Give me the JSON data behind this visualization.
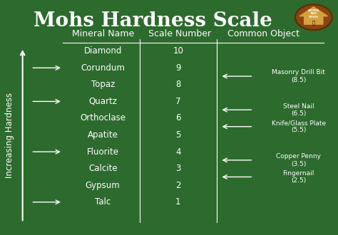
{
  "title": "Mohs Hardness Scale",
  "bg_color": "#2d6a2d",
  "text_color": "#ffffff",
  "col_headers": [
    "Mineral Name",
    "Scale Number",
    "Common Object"
  ],
  "minerals": [
    "Diamond",
    "Corundum",
    "Topaz",
    "Quartz",
    "Orthoclase",
    "Apatite",
    "Fluorite",
    "Calcite",
    "Gypsum",
    "Talc"
  ],
  "scale_numbers": [
    10,
    9,
    8,
    7,
    6,
    5,
    4,
    3,
    2,
    1
  ],
  "common_objects": [
    {
      "name": "Masonry Drill Bit\n(8.5)",
      "scale": 8.5
    },
    {
      "name": "Steel Nail\n(6.5)",
      "scale": 6.5
    },
    {
      "name": "Knife/Glass Plate\n(5.5)",
      "scale": 5.5
    },
    {
      "name": "Copper Penny\n(3.5)",
      "scale": 3.5
    },
    {
      "name": "Fingernail\n(2.5)",
      "scale": 2.5
    }
  ],
  "ylabel": "Increasing Hardness",
  "header_fontsize": 9,
  "title_fontsize": 20,
  "body_fontsize": 8.5,
  "line_color": "#ffffff"
}
